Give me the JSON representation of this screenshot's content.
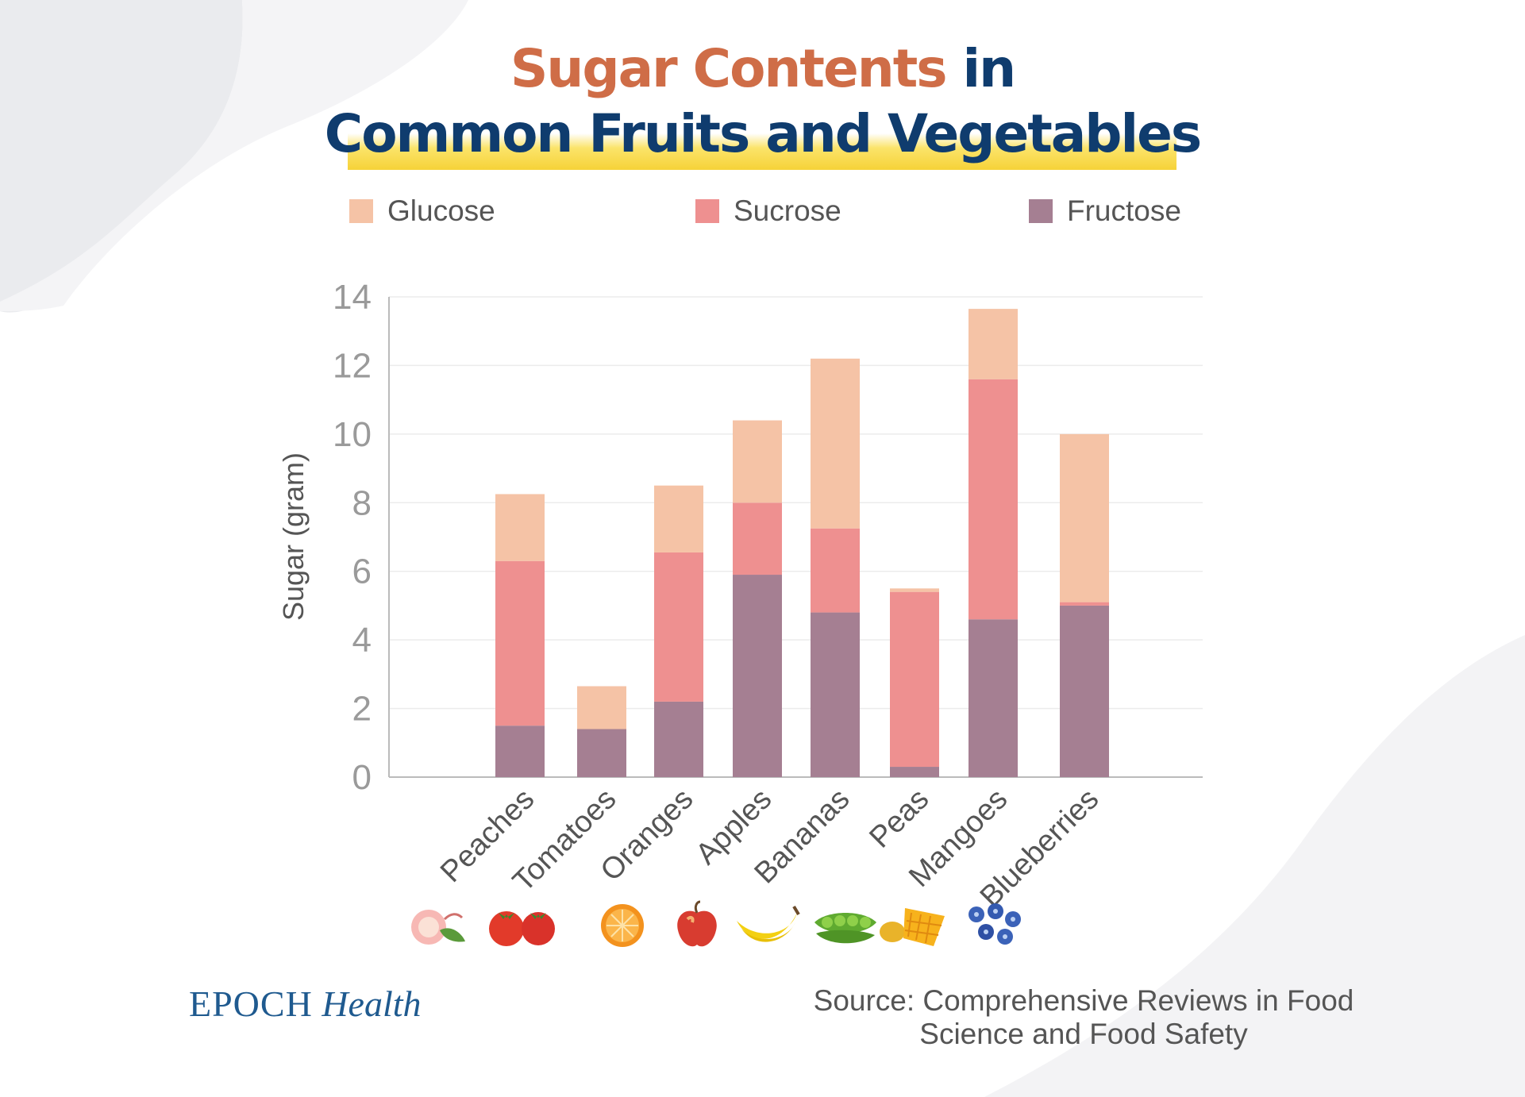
{
  "title": {
    "line1_accent": "Sugar Contents",
    "line1_rest": " in",
    "line2": "Common Fruits and Vegetables"
  },
  "legend": [
    {
      "label": "Glucose",
      "color": "#f5c3a6"
    },
    {
      "label": "Sucrose",
      "color": "#ee9090"
    },
    {
      "label": "Fructose",
      "color": "#a57f92"
    }
  ],
  "footer": {
    "brand_part1": "EPOCH",
    "brand_part2": "Health",
    "source_line1": "Source: Comprehensive Reviews in Food",
    "source_line2": "Science and Food Safety"
  },
  "icons": [
    "peach-icon",
    "tomato-icon",
    "orange-icon",
    "apple-icon",
    "banana-icon",
    "peas-icon",
    "mango-icon",
    "blueberry-icon"
  ],
  "chart_data": {
    "type": "bar",
    "stacked": true,
    "categories": [
      "Peaches",
      "Tomatoes",
      "Oranges",
      "Apples",
      "Bananas",
      "Peas",
      "Mangoes",
      "Blueberries"
    ],
    "series": [
      {
        "name": "Fructose",
        "color": "#a57f92",
        "values": [
          1.5,
          1.4,
          2.2,
          5.9,
          4.8,
          0.3,
          4.6,
          5.0
        ]
      },
      {
        "name": "Sucrose",
        "color": "#ee9090",
        "values": [
          4.8,
          0,
          4.35,
          2.1,
          2.45,
          5.1,
          7.0,
          0.1
        ]
      },
      {
        "name": "Glucose",
        "color": "#f5c3a6",
        "values": [
          1.95,
          1.25,
          1.95,
          2.4,
          4.95,
          0.1,
          2.05,
          4.9
        ]
      }
    ],
    "ylabel": "Sugar (gram)",
    "xlabel": "",
    "ylim": [
      0,
      14
    ],
    "yticks": [
      0,
      2,
      4,
      6,
      8,
      10,
      12,
      14
    ],
    "grid": true,
    "legend_position": "top"
  }
}
